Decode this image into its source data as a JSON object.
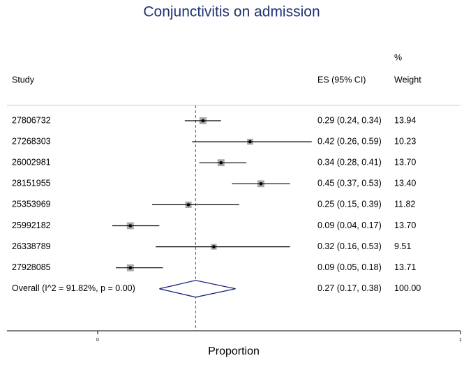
{
  "chart_data": {
    "type": "forest",
    "title": "Conjunctivitis on admission",
    "x_label": "Proportion",
    "headers": {
      "study": "Study",
      "es": "ES (95% CI)",
      "weight_top": "%",
      "weight": "Weight"
    },
    "studies": [
      "27806732",
      "27268303",
      "26002981",
      "28151955",
      "25353969",
      "25992182",
      "26338789",
      "27928085"
    ],
    "es": [
      0.29,
      0.42,
      0.34,
      0.45,
      0.25,
      0.09,
      0.32,
      0.09
    ],
    "ci_low": [
      0.24,
      0.26,
      0.28,
      0.37,
      0.15,
      0.04,
      0.16,
      0.05
    ],
    "ci_high": [
      0.34,
      0.59,
      0.41,
      0.53,
      0.39,
      0.17,
      0.53,
      0.18
    ],
    "es_labels": [
      "0.29 (0.24, 0.34)",
      "0.42 (0.26, 0.59)",
      "0.34 (0.28, 0.41)",
      "0.45 (0.37, 0.53)",
      "0.25 (0.15, 0.39)",
      "0.09 (0.04, 0.17)",
      "0.32 (0.16, 0.53)",
      "0.09 (0.05, 0.18)"
    ],
    "weights": [
      13.94,
      10.23,
      13.7,
      13.4,
      11.82,
      13.7,
      9.51,
      13.71
    ],
    "weight_labels": [
      "13.94",
      "10.23",
      "13.70",
      "13.40",
      "11.82",
      "13.70",
      "9.51",
      "13.71"
    ],
    "overall": {
      "label": "Overall  (I^2 = 91.82%, p = 0.00)",
      "es": 0.27,
      "ci_low": 0.17,
      "ci_high": 0.38,
      "es_label": "0.27 (0.17, 0.38)",
      "weight": 100,
      "weight_label": "100.00"
    },
    "xlim": [
      -0.25,
      1
    ],
    "xticks": [
      0,
      1
    ],
    "marker_color": "#a9a9a9",
    "diamond_color": "#1a237e",
    "ref_line_color": "#b03030",
    "title_color": "#1f3470"
  }
}
